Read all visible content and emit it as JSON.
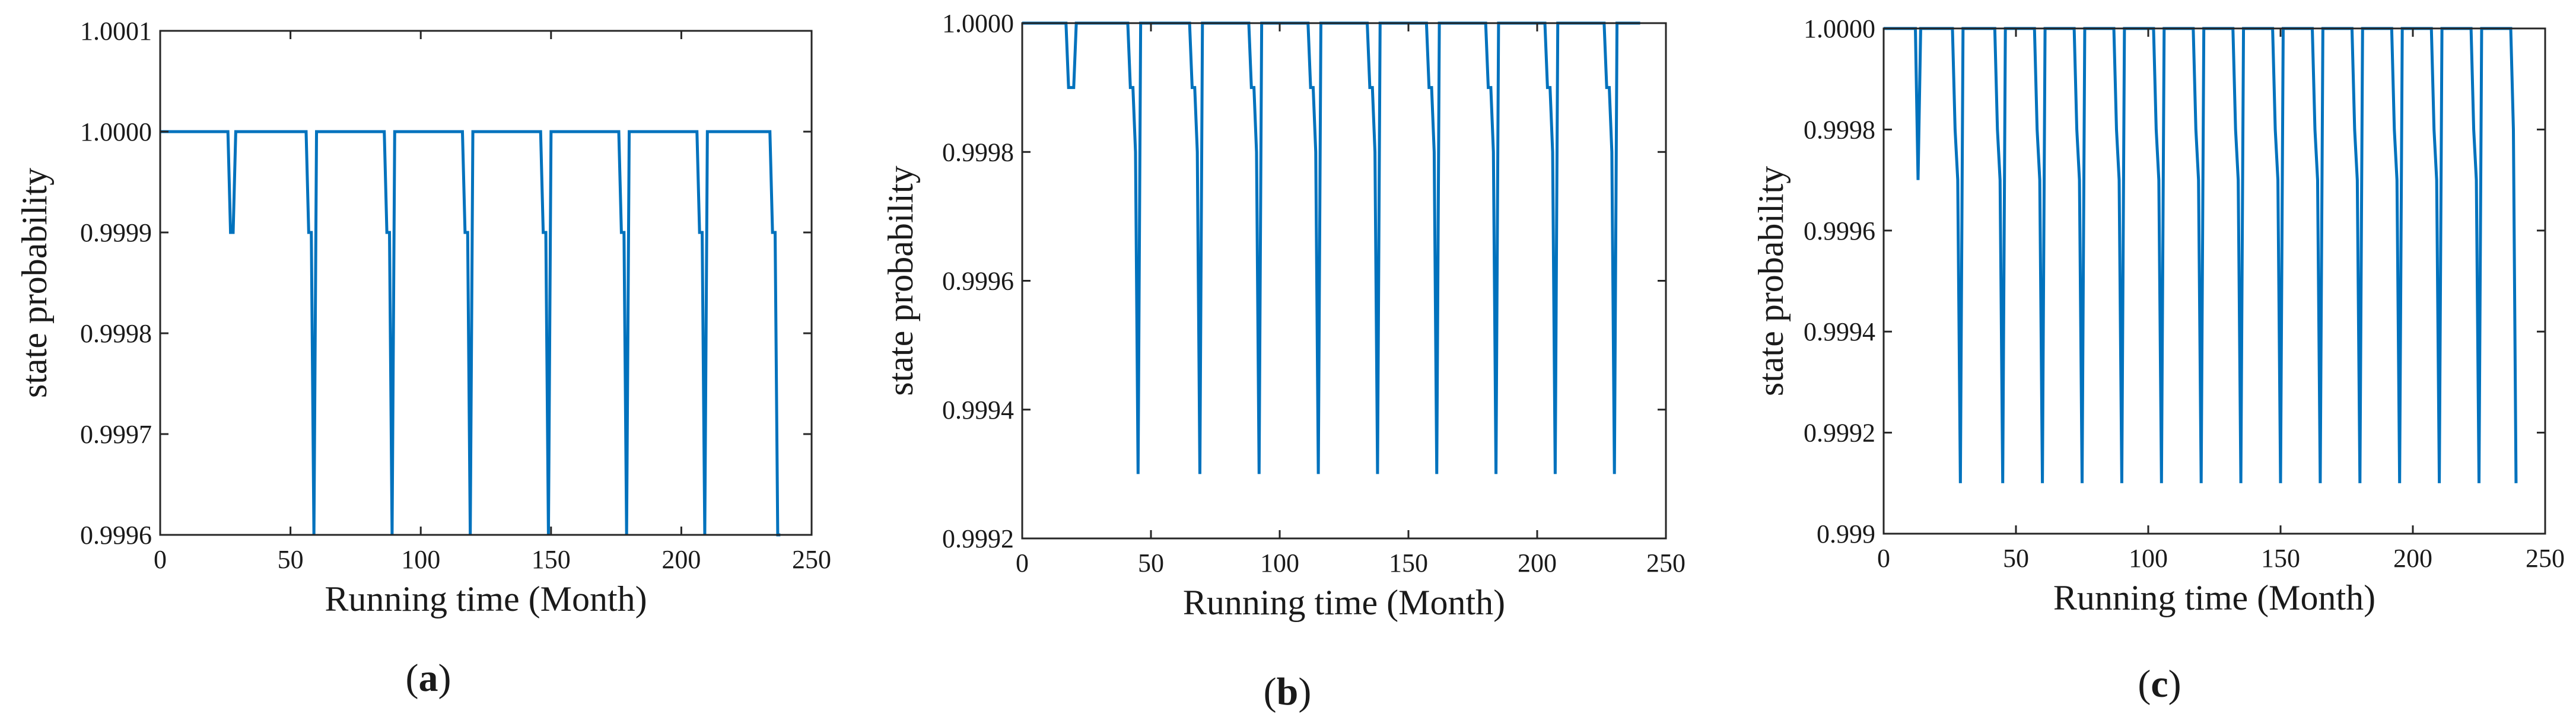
{
  "figure": {
    "line_color": "#0072BD",
    "axis_color": "#262626"
  },
  "chart_data": [
    {
      "type": "line",
      "caption_letter": "a",
      "xlabel": "Running time  (Month)",
      "ylabel": "state probability",
      "xlim": [
        0,
        250
      ],
      "ylim": [
        0.9996,
        1.0001
      ],
      "xticks": [
        0,
        50,
        100,
        150,
        200,
        250
      ],
      "xtick_labels": [
        "0",
        "50",
        "100",
        "150",
        "200",
        "250"
      ],
      "yticks": [
        0.9996,
        0.9997,
        0.9998,
        0.9999,
        1.0,
        1.0001
      ],
      "ytick_labels": [
        "0.9996",
        "0.9997",
        "0.9998",
        "0.9999",
        "1.0000",
        "1.0001"
      ],
      "series": [
        {
          "name": "state probability",
          "x": [
            0,
            26,
            27,
            28,
            29,
            56,
            57,
            58,
            59,
            60,
            86,
            87,
            88,
            89,
            90,
            116,
            117,
            118,
            119,
            120,
            146,
            147,
            148,
            149,
            150,
            176,
            177,
            178,
            179,
            180,
            206,
            207,
            208,
            209,
            210,
            234,
            235,
            236,
            237,
            238
          ],
          "y": [
            1.0,
            1.0,
            0.9999,
            0.9999,
            1.0,
            1.0,
            0.9999,
            0.9999,
            0.9996,
            1.0,
            1.0,
            0.9999,
            0.9999,
            0.9996,
            1.0,
            1.0,
            0.9999,
            0.9999,
            0.9996,
            1.0,
            1.0,
            0.9999,
            0.9999,
            0.9996,
            1.0,
            1.0,
            0.9999,
            0.9999,
            0.9996,
            1.0,
            1.0,
            0.9999,
            0.9999,
            0.9996,
            1.0,
            1.0,
            0.9999,
            0.9999,
            0.9996,
            0.9996
          ]
        }
      ]
    },
    {
      "type": "line",
      "caption_letter": "b",
      "xlabel": "Running time  (Month)",
      "ylabel": "state probability",
      "xlim": [
        0,
        250
      ],
      "ylim": [
        0.9992,
        1.0
      ],
      "xticks": [
        0,
        50,
        100,
        150,
        200,
        250
      ],
      "xtick_labels": [
        "0",
        "50",
        "100",
        "150",
        "200",
        "250"
      ],
      "yticks": [
        0.9992,
        0.9994,
        0.9996,
        0.9998,
        1.0
      ],
      "ytick_labels": [
        "0.9992",
        "0.9994",
        "0.9996",
        "0.9998",
        "1.0000"
      ],
      "series": [
        {
          "name": "state probability",
          "x": [
            0,
            17,
            18,
            20,
            21,
            41,
            42,
            43,
            44,
            45,
            46,
            65,
            66,
            67,
            68,
            69,
            70,
            88,
            89,
            90,
            91,
            92,
            93,
            111,
            112,
            113,
            114,
            115,
            116,
            134,
            135,
            136,
            137,
            138,
            139,
            157,
            158,
            159,
            160,
            161,
            162,
            180,
            181,
            182,
            183,
            184,
            185,
            203,
            204,
            205,
            206,
            207,
            208,
            226,
            227,
            228,
            229,
            230,
            231,
            240
          ],
          "y": [
            1.0,
            1.0,
            0.9999,
            0.9999,
            1.0,
            1.0,
            0.9999,
            0.9999,
            0.9998,
            0.9993,
            1.0,
            1.0,
            0.9999,
            0.9999,
            0.9998,
            0.9993,
            1.0,
            1.0,
            0.9999,
            0.9999,
            0.9998,
            0.9993,
            1.0,
            1.0,
            0.9999,
            0.9999,
            0.9998,
            0.9993,
            1.0,
            1.0,
            0.9999,
            0.9999,
            0.9998,
            0.9993,
            1.0,
            1.0,
            0.9999,
            0.9999,
            0.9998,
            0.9993,
            1.0,
            1.0,
            0.9999,
            0.9999,
            0.9998,
            0.9993,
            1.0,
            1.0,
            0.9999,
            0.9999,
            0.9998,
            0.9993,
            1.0,
            1.0,
            0.9999,
            0.9999,
            0.9998,
            0.9993,
            1.0,
            1.0
          ]
        }
      ]
    },
    {
      "type": "line",
      "caption_letter": "c",
      "xlabel": "Running time  (Month)",
      "ylabel": "state probability",
      "xlim": [
        0,
        250
      ],
      "ylim": [
        0.999,
        1.0
      ],
      "xticks": [
        0,
        50,
        100,
        150,
        200,
        250
      ],
      "xtick_labels": [
        "0",
        "50",
        "100",
        "150",
        "200",
        "250"
      ],
      "yticks": [
        0.999,
        0.9992,
        0.9994,
        0.9996,
        0.9998,
        1.0
      ],
      "ytick_labels": [
        "0.999",
        "0.9992",
        "0.9994",
        "0.9996",
        "0.9998",
        "1.0000"
      ],
      "series": [
        {
          "name": "state probability",
          "x": [
            0,
            12,
            13,
            14,
            26,
            27,
            28,
            29,
            30,
            42,
            43,
            44,
            45,
            46,
            57,
            58,
            59,
            60,
            61,
            72,
            73,
            74,
            75,
            76,
            87,
            88,
            89,
            90,
            91,
            102,
            103,
            104,
            105,
            106,
            117,
            118,
            119,
            120,
            121,
            132,
            133,
            134,
            135,
            136,
            147,
            148,
            149,
            150,
            151,
            162,
            163,
            164,
            165,
            166,
            177,
            178,
            179,
            180,
            181,
            192,
            193,
            194,
            195,
            196,
            207,
            208,
            209,
            210,
            211,
            222,
            223,
            224,
            225,
            226,
            237,
            238,
            239
          ],
          "y": [
            1.0,
            1.0,
            0.9997,
            1.0,
            1.0,
            0.9998,
            0.9997,
            0.9991,
            1.0,
            1.0,
            0.9998,
            0.9997,
            0.9991,
            1.0,
            1.0,
            0.9998,
            0.9997,
            0.9991,
            1.0,
            1.0,
            0.9998,
            0.9997,
            0.9991,
            1.0,
            1.0,
            0.9998,
            0.9997,
            0.9991,
            1.0,
            1.0,
            0.9998,
            0.9997,
            0.9991,
            1.0,
            1.0,
            0.9998,
            0.9997,
            0.9991,
            1.0,
            1.0,
            0.9998,
            0.9997,
            0.9991,
            1.0,
            1.0,
            0.9998,
            0.9997,
            0.9991,
            1.0,
            1.0,
            0.9998,
            0.9997,
            0.9991,
            1.0,
            1.0,
            0.9998,
            0.9997,
            0.9991,
            1.0,
            1.0,
            0.9998,
            0.9997,
            0.9991,
            1.0,
            1.0,
            0.9998,
            0.9997,
            0.9991,
            1.0,
            1.0,
            0.9998,
            0.9997,
            0.9991,
            1.0,
            1.0,
            0.9998,
            0.9991
          ]
        }
      ]
    }
  ]
}
